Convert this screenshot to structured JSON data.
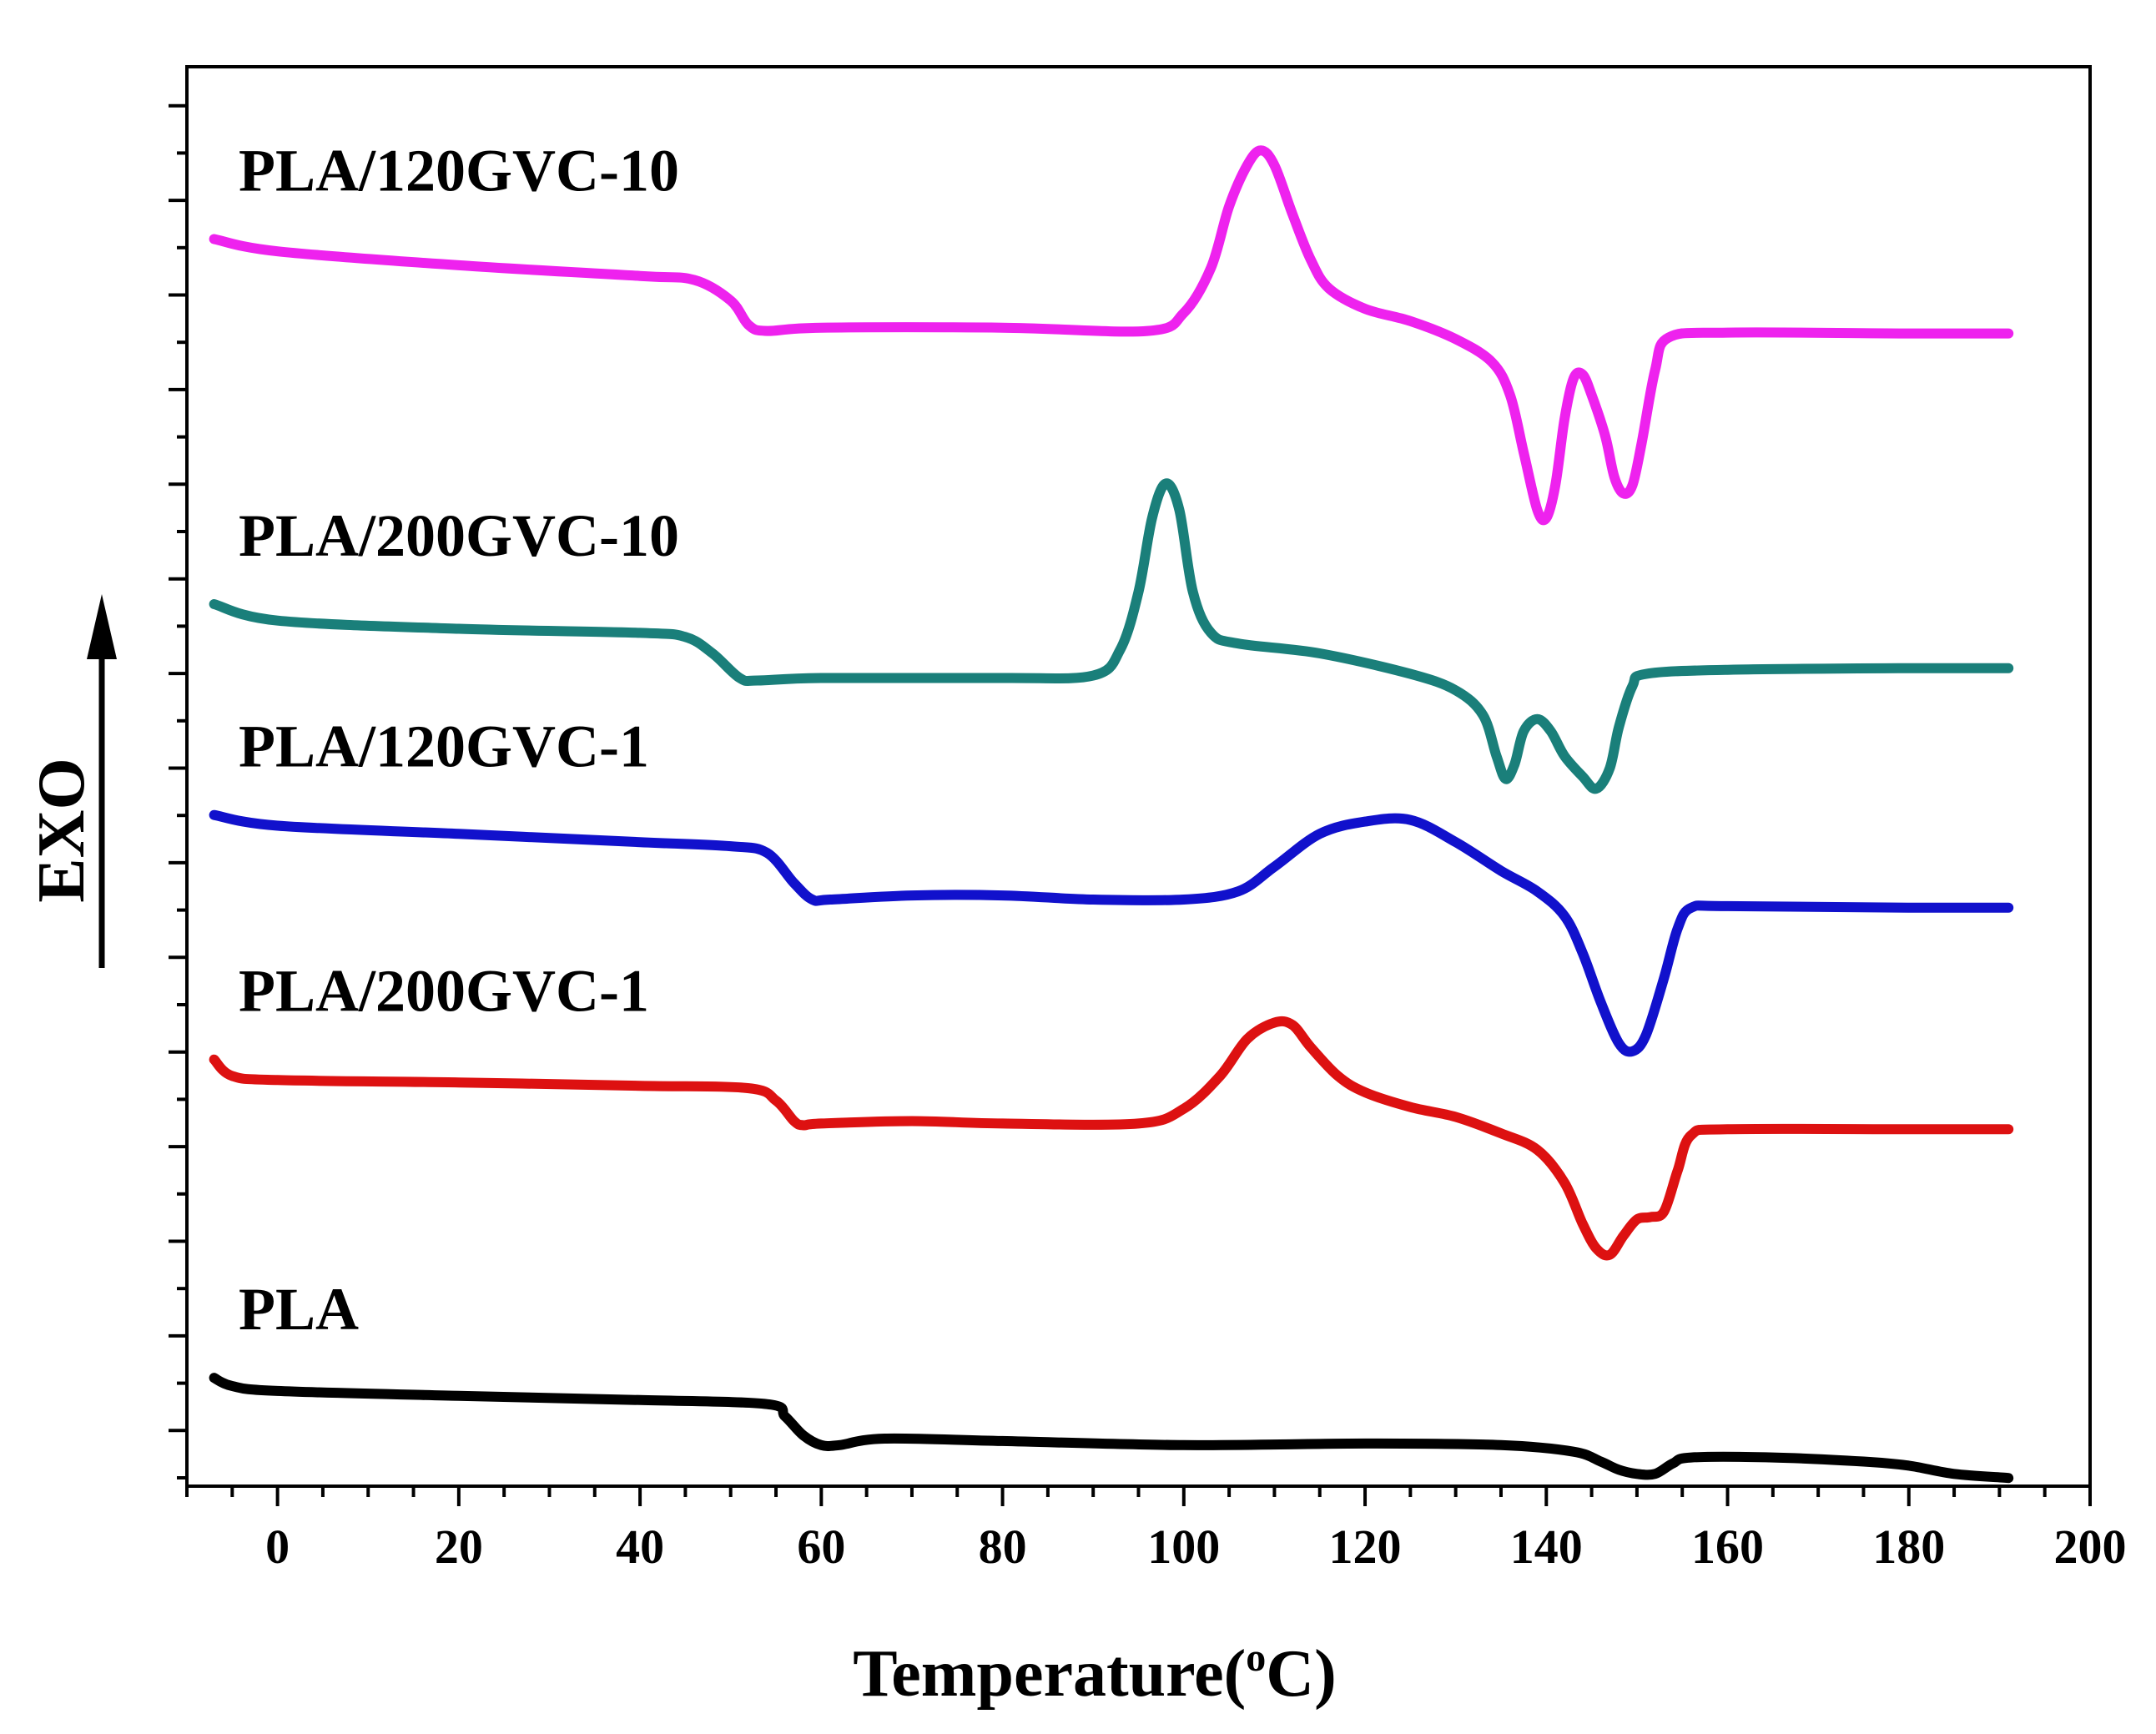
{
  "chart_data": {
    "type": "line",
    "title": "",
    "xlabel": "Temperature(",
    "xlabel_sup": "o",
    "xlabel_unit": "C)",
    "ylabel": "EXO",
    "xlim": [
      -10,
      200
    ],
    "x_ticks": [
      0,
      20,
      40,
      60,
      80,
      100,
      120,
      140,
      160,
      180,
      200
    ],
    "x_tick_labels": [
      "0",
      "20",
      "40",
      "60",
      "80",
      "100",
      "120",
      "140",
      "160",
      "180",
      "200"
    ],
    "ylim": [
      0,
      17.3
    ],
    "y_ticks_shown": false,
    "grid": false,
    "legend": "labels above each curve at left",
    "series": [
      {
        "name": "PLA/120GVC-10",
        "color": "#ee22ee",
        "points": [
          [
            -7,
            15.2
          ],
          [
            0,
            15.05
          ],
          [
            20,
            14.88
          ],
          [
            40,
            14.75
          ],
          [
            46,
            14.7
          ],
          [
            50,
            14.45
          ],
          [
            52,
            14.15
          ],
          [
            54,
            14.08
          ],
          [
            60,
            14.12
          ],
          [
            80,
            14.12
          ],
          [
            96,
            14.08
          ],
          [
            100,
            14.3
          ],
          [
            103,
            14.85
          ],
          [
            105,
            15.6
          ],
          [
            107,
            16.1
          ],
          [
            108.5,
            16.28
          ],
          [
            110,
            16.1
          ],
          [
            112,
            15.5
          ],
          [
            114,
            14.95
          ],
          [
            116,
            14.6
          ],
          [
            120,
            14.35
          ],
          [
            125,
            14.2
          ],
          [
            130,
            13.98
          ],
          [
            134,
            13.7
          ],
          [
            136,
            13.3
          ],
          [
            137.5,
            12.6
          ],
          [
            139,
            11.9
          ],
          [
            140,
            11.8
          ],
          [
            141,
            12.2
          ],
          [
            142,
            13.0
          ],
          [
            143,
            13.5
          ],
          [
            144,
            13.55
          ],
          [
            145,
            13.3
          ],
          [
            146.5,
            12.8
          ],
          [
            147.5,
            12.3
          ],
          [
            148.5,
            12.1
          ],
          [
            149.5,
            12.2
          ],
          [
            150.5,
            12.7
          ],
          [
            152,
            13.6
          ],
          [
            153.5,
            14.0
          ],
          [
            160,
            14.06
          ],
          [
            180,
            14.05
          ],
          [
            191,
            14.05
          ]
        ]
      },
      {
        "name": "PLA/200GVC-10",
        "color": "#1a7f7a",
        "points": [
          [
            -7,
            10.75
          ],
          [
            0,
            10.55
          ],
          [
            20,
            10.45
          ],
          [
            40,
            10.4
          ],
          [
            45,
            10.35
          ],
          [
            48,
            10.15
          ],
          [
            51,
            9.85
          ],
          [
            53,
            9.82
          ],
          [
            60,
            9.85
          ],
          [
            80,
            9.85
          ],
          [
            90,
            9.88
          ],
          [
            93,
            10.2
          ],
          [
            95,
            10.9
          ],
          [
            96.5,
            11.8
          ],
          [
            98,
            12.22
          ],
          [
            99.5,
            11.9
          ],
          [
            101,
            10.9
          ],
          [
            103,
            10.4
          ],
          [
            106,
            10.27
          ],
          [
            115,
            10.15
          ],
          [
            125,
            9.9
          ],
          [
            130,
            9.7
          ],
          [
            133,
            9.4
          ],
          [
            134.5,
            8.9
          ],
          [
            135.5,
            8.62
          ],
          [
            136.5,
            8.8
          ],
          [
            137.5,
            9.2
          ],
          [
            139,
            9.35
          ],
          [
            140.5,
            9.2
          ],
          [
            142,
            8.9
          ],
          [
            144,
            8.65
          ],
          [
            145.5,
            8.5
          ],
          [
            147,
            8.75
          ],
          [
            148,
            9.25
          ],
          [
            149.5,
            9.75
          ],
          [
            151,
            9.9
          ],
          [
            160,
            9.95
          ],
          [
            180,
            9.97
          ],
          [
            191,
            9.97
          ]
        ]
      },
      {
        "name": "PLA/120GVC-1",
        "color": "#1111cc",
        "points": [
          [
            -7,
            8.18
          ],
          [
            0,
            8.05
          ],
          [
            20,
            7.95
          ],
          [
            40,
            7.85
          ],
          [
            50,
            7.8
          ],
          [
            54,
            7.72
          ],
          [
            57,
            7.35
          ],
          [
            59,
            7.15
          ],
          [
            61,
            7.15
          ],
          [
            70,
            7.2
          ],
          [
            80,
            7.2
          ],
          [
            90,
            7.15
          ],
          [
            100,
            7.15
          ],
          [
            106,
            7.25
          ],
          [
            110,
            7.55
          ],
          [
            115,
            7.95
          ],
          [
            120,
            8.1
          ],
          [
            125,
            8.12
          ],
          [
            130,
            7.85
          ],
          [
            135,
            7.5
          ],
          [
            139,
            7.25
          ],
          [
            142,
            6.95
          ],
          [
            144,
            6.5
          ],
          [
            146,
            5.9
          ],
          [
            148,
            5.4
          ],
          [
            149.5,
            5.3
          ],
          [
            151,
            5.5
          ],
          [
            153,
            6.2
          ],
          [
            154.5,
            6.8
          ],
          [
            156,
            7.05
          ],
          [
            160,
            7.07
          ],
          [
            180,
            7.05
          ],
          [
            191,
            7.05
          ]
        ]
      },
      {
        "name": "PLA/200GVC-1",
        "color": "#dd1111",
        "points": [
          [
            -7,
            5.2
          ],
          [
            -5,
            5.0
          ],
          [
            0,
            4.95
          ],
          [
            20,
            4.92
          ],
          [
            40,
            4.88
          ],
          [
            52,
            4.85
          ],
          [
            55,
            4.7
          ],
          [
            57,
            4.45
          ],
          [
            58,
            4.4
          ],
          [
            60,
            4.42
          ],
          [
            70,
            4.45
          ],
          [
            80,
            4.42
          ],
          [
            95,
            4.42
          ],
          [
            100,
            4.6
          ],
          [
            104,
            5.0
          ],
          [
            107,
            5.45
          ],
          [
            110,
            5.65
          ],
          [
            112,
            5.62
          ],
          [
            114,
            5.35
          ],
          [
            117,
            5.0
          ],
          [
            120,
            4.8
          ],
          [
            125,
            4.62
          ],
          [
            130,
            4.5
          ],
          [
            135,
            4.3
          ],
          [
            139,
            4.1
          ],
          [
            142,
            3.7
          ],
          [
            144,
            3.2
          ],
          [
            145.5,
            2.9
          ],
          [
            147,
            2.82
          ],
          [
            148.5,
            3.05
          ],
          [
            150,
            3.25
          ],
          [
            151.5,
            3.28
          ],
          [
            153,
            3.35
          ],
          [
            154.5,
            3.85
          ],
          [
            156,
            4.28
          ],
          [
            160,
            4.35
          ],
          [
            180,
            4.35
          ],
          [
            191,
            4.35
          ]
        ]
      },
      {
        "name": "PLA",
        "color": "#000000",
        "points": [
          [
            -7,
            1.32
          ],
          [
            -5,
            1.22
          ],
          [
            0,
            1.16
          ],
          [
            20,
            1.1
          ],
          [
            40,
            1.05
          ],
          [
            54,
            1.0
          ],
          [
            56,
            0.85
          ],
          [
            58,
            0.62
          ],
          [
            60,
            0.5
          ],
          [
            62,
            0.5
          ],
          [
            67,
            0.58
          ],
          [
            80,
            0.55
          ],
          [
            100,
            0.5
          ],
          [
            120,
            0.52
          ],
          [
            135,
            0.5
          ],
          [
            143,
            0.42
          ],
          [
            146,
            0.3
          ],
          [
            148,
            0.2
          ],
          [
            150,
            0.15
          ],
          [
            152,
            0.15
          ],
          [
            154,
            0.28
          ],
          [
            156,
            0.35
          ],
          [
            165,
            0.35
          ],
          [
            175,
            0.3
          ],
          [
            180,
            0.25
          ],
          [
            185,
            0.15
          ],
          [
            191,
            0.1
          ]
        ]
      }
    ]
  }
}
